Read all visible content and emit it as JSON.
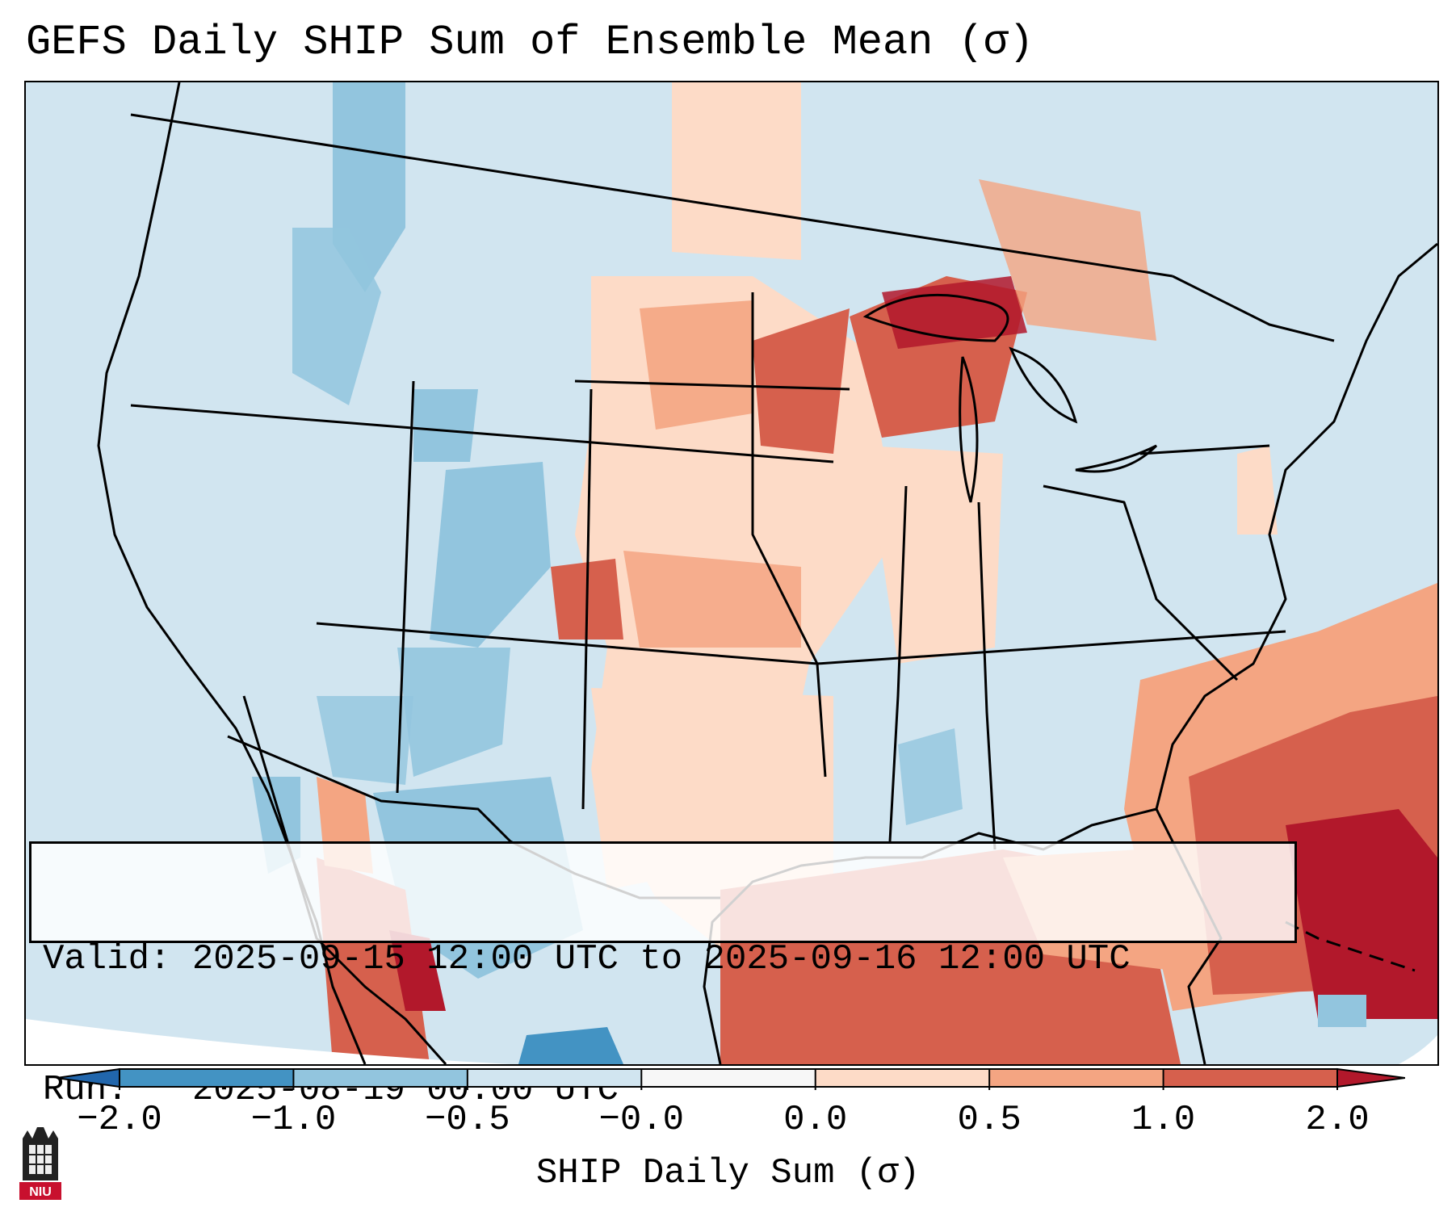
{
  "title": "GEFS Daily SHIP Sum of Ensemble Mean (σ)",
  "info": {
    "valid": "Valid: 2025-09-15 12:00 UTC to 2025-09-16 12:00 UTC",
    "run": "Run:   2025-08-19 00:00 UTC"
  },
  "colorbar": {
    "label": "SHIP Daily Sum (σ)",
    "ticks": [
      "−2.0",
      "−1.0",
      "−0.5",
      "−0.0",
      "0.0",
      "0.5",
      "1.0",
      "2.0"
    ],
    "colors": [
      "#2166ac",
      "#4393c3",
      "#92c5de",
      "#d1e5f0",
      "#f7f7f7",
      "#fddbc7",
      "#f4a582",
      "#d6604d",
      "#b2182b"
    ],
    "extend": "both"
  },
  "logo": {
    "text": "NIU",
    "icon": "castle-tower-icon"
  },
  "map": {
    "projection": "Lambert Conformal (CONUS)",
    "background_category": "-0.0 to 0.0 (near-neutral blue)",
    "notable_regions": [
      {
        "region": "Gulf of Mexico",
        "category": "1.0 to 2.0"
      },
      {
        "region": "Caribbean / Cuba",
        "category": "> 2.0"
      },
      {
        "region": "Western Atlantic",
        "category": "0.5 to 2.0"
      },
      {
        "region": "Upper Michigan / Wisconsin",
        "category": "1.0 to 2.0"
      },
      {
        "region": "Colorado / Wyoming mountains",
        "category": "-1.0 to -0.5"
      },
      {
        "region": "Mexico (Sierra Madre)",
        "category": "1.0 to >2.0"
      }
    ]
  }
}
